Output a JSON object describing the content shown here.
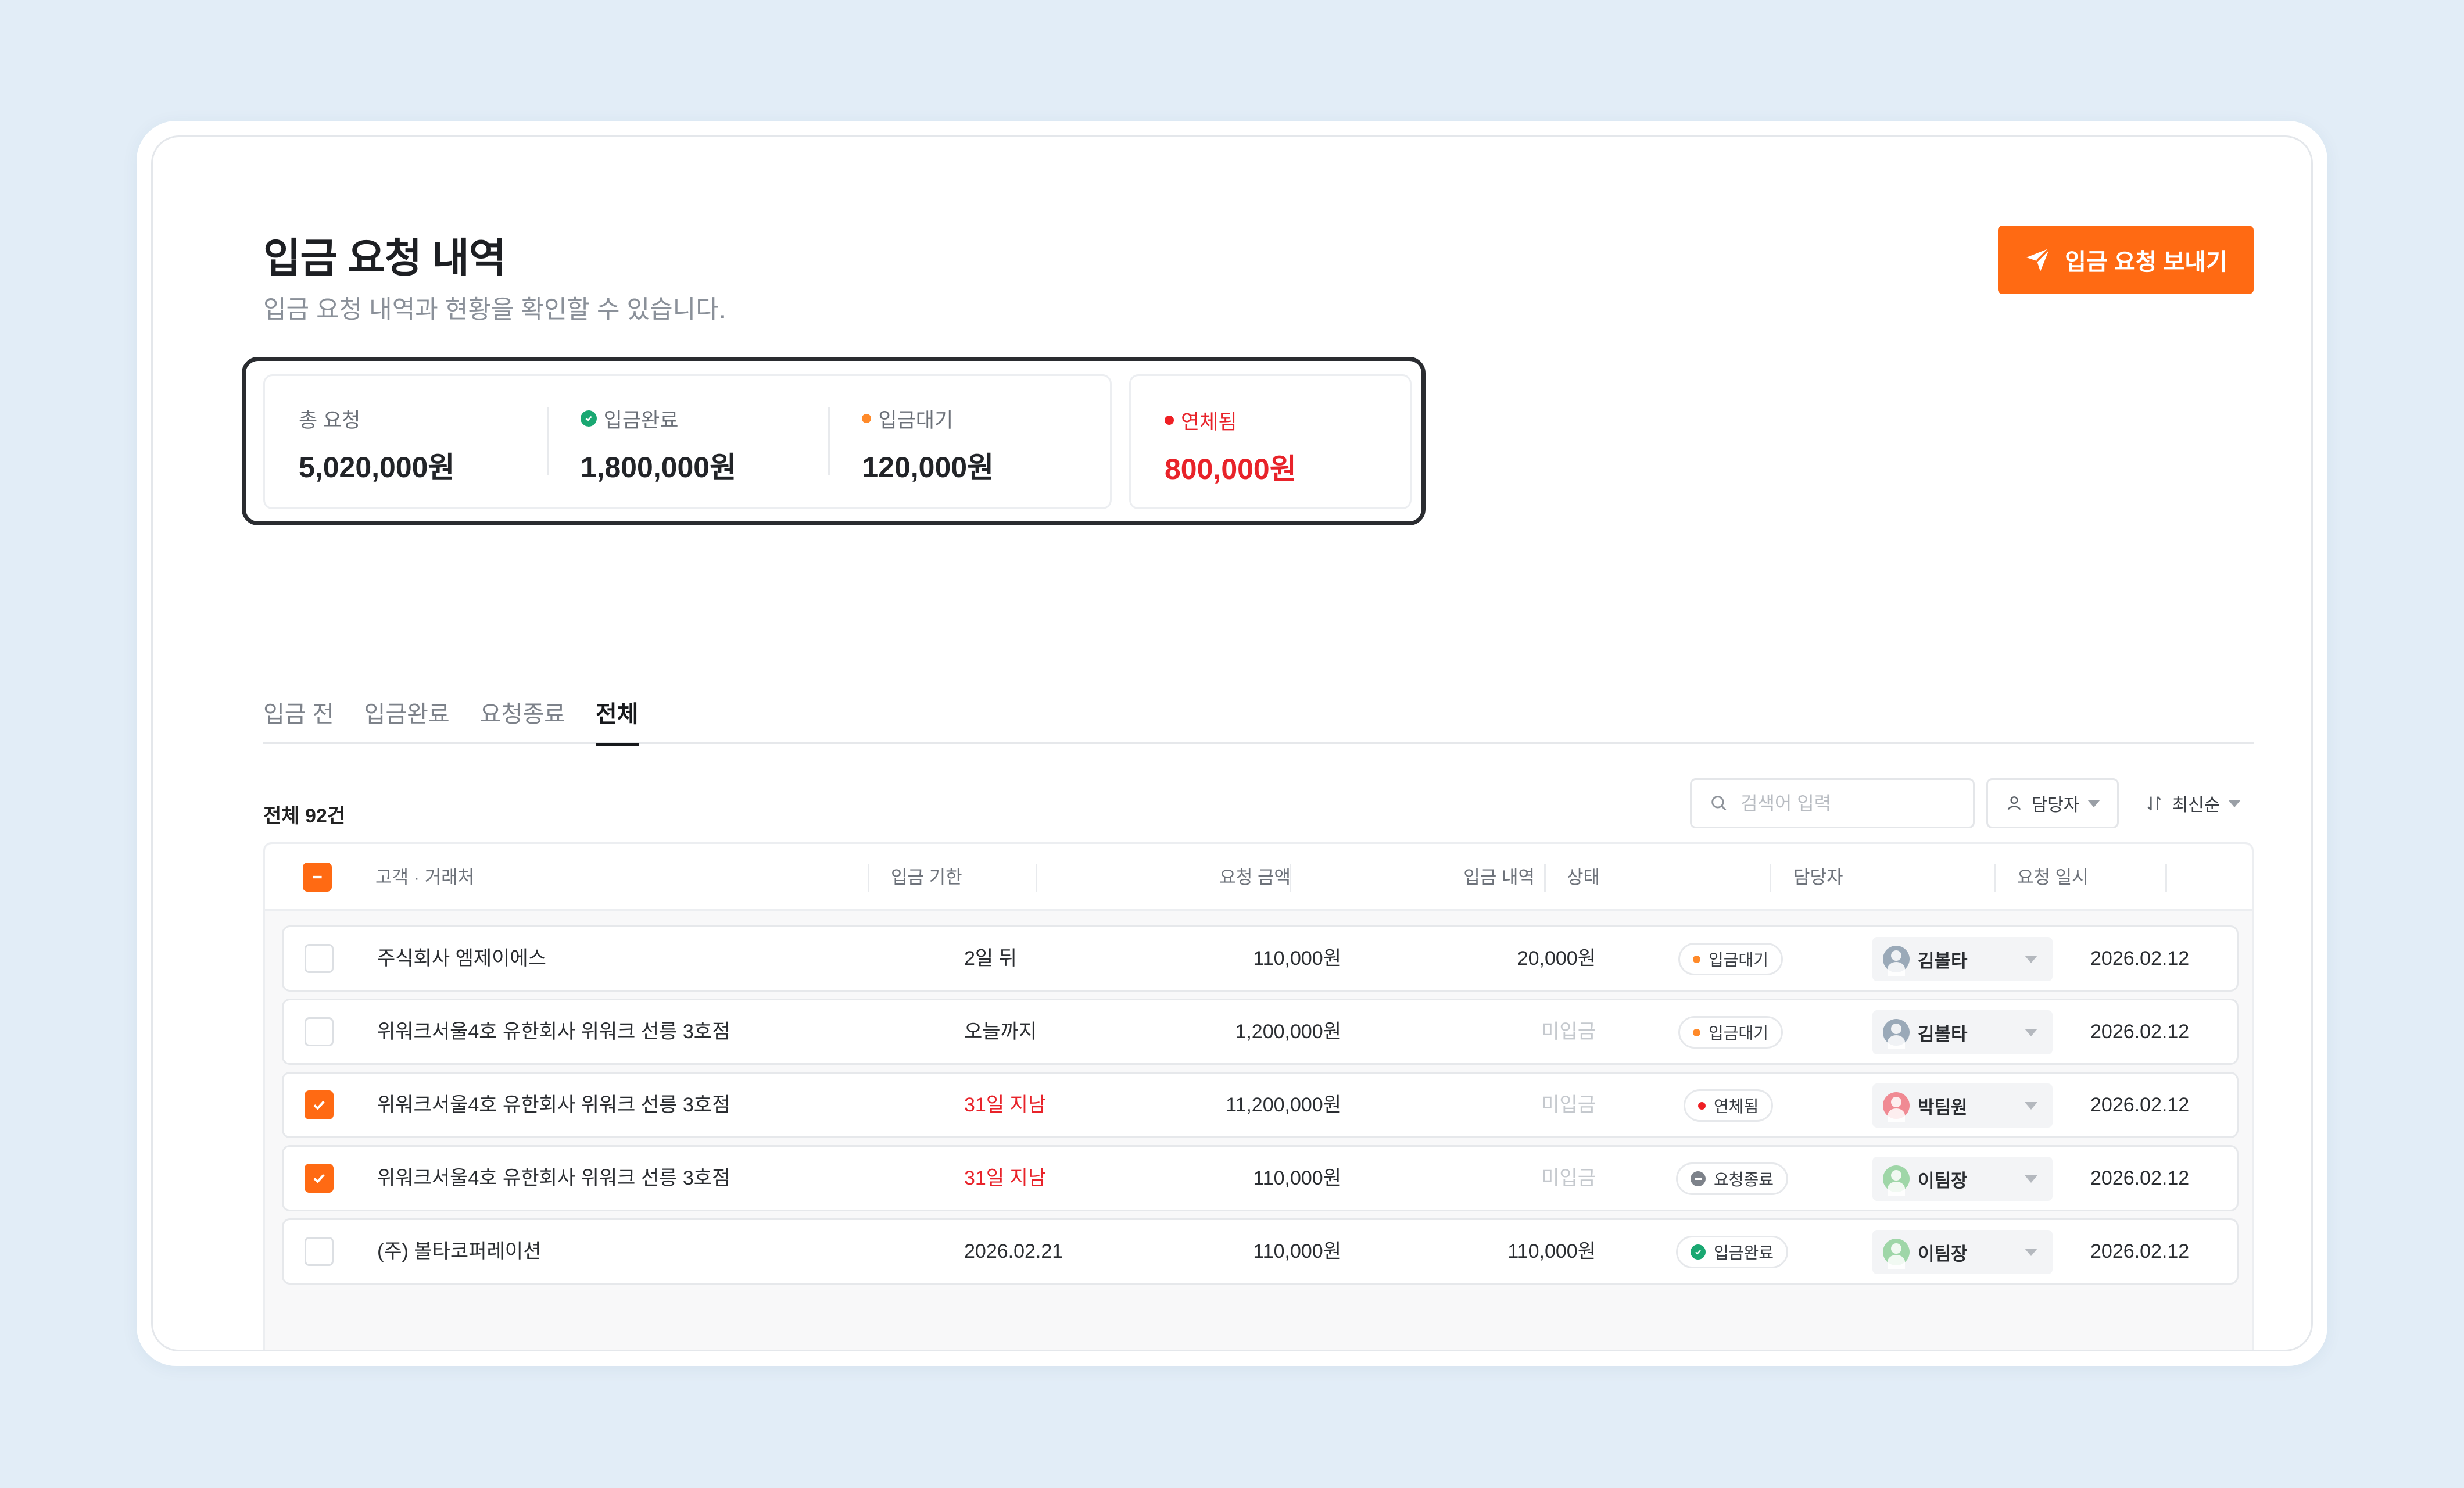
{
  "header": {
    "title": "입금 요청 내역",
    "subtitle": "입금 요청 내역과 현황을 확인할 수 있습니다.",
    "send_button_label": "입금 요청 보내기"
  },
  "summary": {
    "total_label": "총 요청",
    "total_value": "5,020,000원",
    "completed_label": "입금완료",
    "completed_value": "1,800,000원",
    "pending_label": "입금대기",
    "pending_value": "120,000원",
    "overdue_label": "연체됨",
    "overdue_value": "800,000원"
  },
  "tabs": [
    "입금 전",
    "입금완료",
    "요청종료",
    "전체"
  ],
  "active_tab": "전체",
  "toolbar": {
    "total_count": "전체 92건",
    "search_placeholder": "검색어 입력",
    "assignee_filter": "담당자",
    "sort_label": "최신순"
  },
  "table": {
    "columns": {
      "customer": "고객 · 거래처",
      "due": "입금 기한",
      "amount": "요청 금액",
      "paid": "입금 내역",
      "status": "상태",
      "assignee": "담당자",
      "date": "요청 일시"
    },
    "rows": [
      {
        "checked": false,
        "customer": "주식회사 엠제이에스",
        "due": "2일 뒤",
        "due_overdue": false,
        "amount": "110,000원",
        "paid": "20,000원",
        "paid_muted": false,
        "status": "입금대기",
        "status_kind": "pending",
        "assignee": "김볼타",
        "avatar_color": "#9aa9b8",
        "date": "2026.02.12"
      },
      {
        "checked": false,
        "customer": "위워크서울4호 유한회사 위워크 선릉 3호점",
        "due": "오늘까지",
        "due_overdue": false,
        "amount": "1,200,000원",
        "paid": "미입금",
        "paid_muted": true,
        "status": "입금대기",
        "status_kind": "pending",
        "assignee": "김볼타",
        "avatar_color": "#9aa9b8",
        "date": "2026.02.12"
      },
      {
        "checked": true,
        "customer": "위워크서울4호 유한회사 위워크 선릉 3호점",
        "due": "31일 지남",
        "due_overdue": true,
        "amount": "11,200,000원",
        "paid": "미입금",
        "paid_muted": true,
        "status": "연체됨",
        "status_kind": "overdue",
        "assignee": "박팀원",
        "avatar_color": "#f08a93",
        "date": "2026.02.12"
      },
      {
        "checked": true,
        "customer": "위워크서울4호 유한회사 위워크 선릉 3호점",
        "due": "31일 지남",
        "due_overdue": true,
        "amount": "110,000원",
        "paid": "미입금",
        "paid_muted": true,
        "status": "요청종료",
        "status_kind": "closed",
        "assignee": "이팀장",
        "avatar_color": "#9fd6a8",
        "date": "2026.02.12"
      },
      {
        "checked": false,
        "customer": "(주) 볼타코퍼레이션",
        "due": "2026.02.21",
        "due_overdue": false,
        "amount": "110,000원",
        "paid": "110,000원",
        "paid_muted": false,
        "status": "입금완료",
        "status_kind": "completed",
        "assignee": "이팀장",
        "avatar_color": "#9fd6a8",
        "date": "2026.02.12"
      }
    ]
  },
  "colors": {
    "accent": "#ff6a13",
    "overdue": "#e8232a",
    "completed": "#1aa872",
    "pending": "#ff8a2a"
  }
}
